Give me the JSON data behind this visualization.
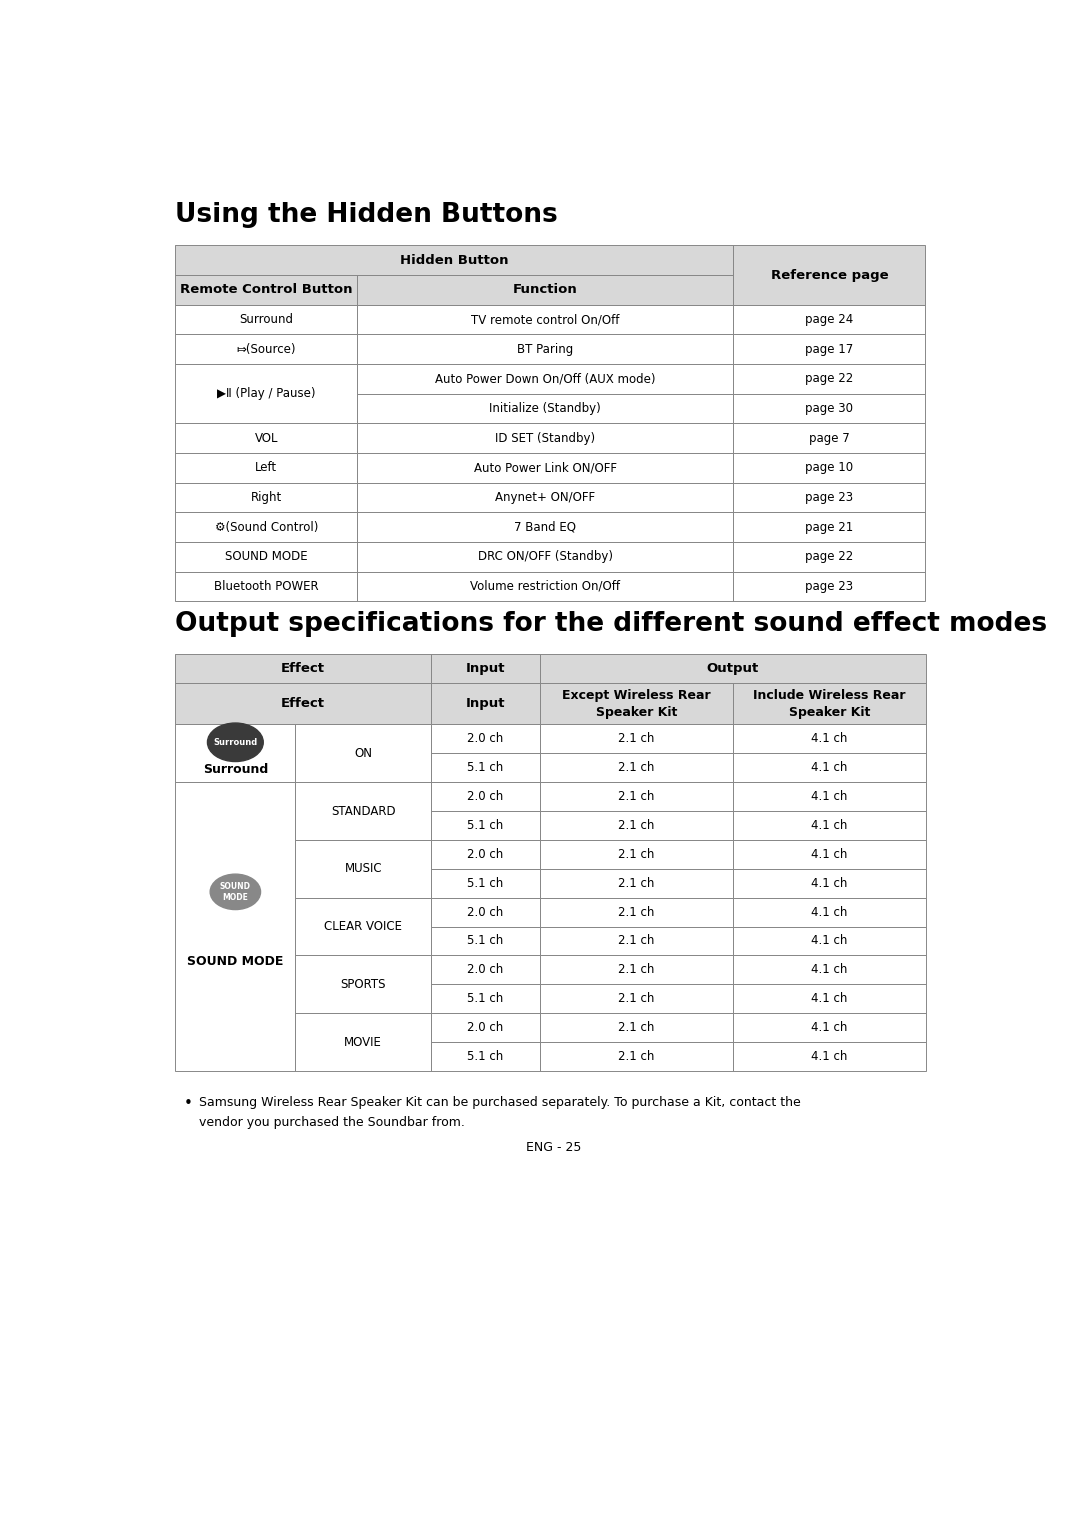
{
  "title1": "Using the Hidden Buttons",
  "title2": "Output specifications for the different sound effect modes",
  "table1_header_bg": "#d8d8d8",
  "table1_row_bg": "#ffffff",
  "table_border_color": "#888888",
  "footnote_line1": "Samsung Wireless Rear Speaker Kit can be purchased separately. To purchase a Kit, contact the",
  "footnote_line2": "vendor you purchased the Soundbar from.",
  "page_number": "ENG - 25",
  "table1_rows": [
    [
      "Surround",
      "TV remote control On/Off",
      "page 24"
    ],
    [
      "⤇(Source)",
      "BT Paring",
      "page 17"
    ],
    [
      "▶Ⅱ (Play / Pause)",
      "Auto Power Down On/Off (AUX mode)",
      "page 22"
    ],
    [
      "",
      "Initialize (Standby)",
      "page 30"
    ],
    [
      "VOL",
      "ID SET (Standby)",
      "page 7"
    ],
    [
      "Left",
      "Auto Power Link ON/OFF",
      "page 10"
    ],
    [
      "Right",
      "Anynet+ ON/OFF",
      "page 23"
    ],
    [
      "⚙(Sound Control)",
      "7 Band EQ",
      "page 21"
    ],
    [
      "SOUND MODE",
      "DRC ON/OFF (Standby)",
      "page 22"
    ],
    [
      "Bluetooth POWER",
      "Volume restriction On/Off",
      "page 23"
    ]
  ],
  "bg_color": "#ffffff"
}
